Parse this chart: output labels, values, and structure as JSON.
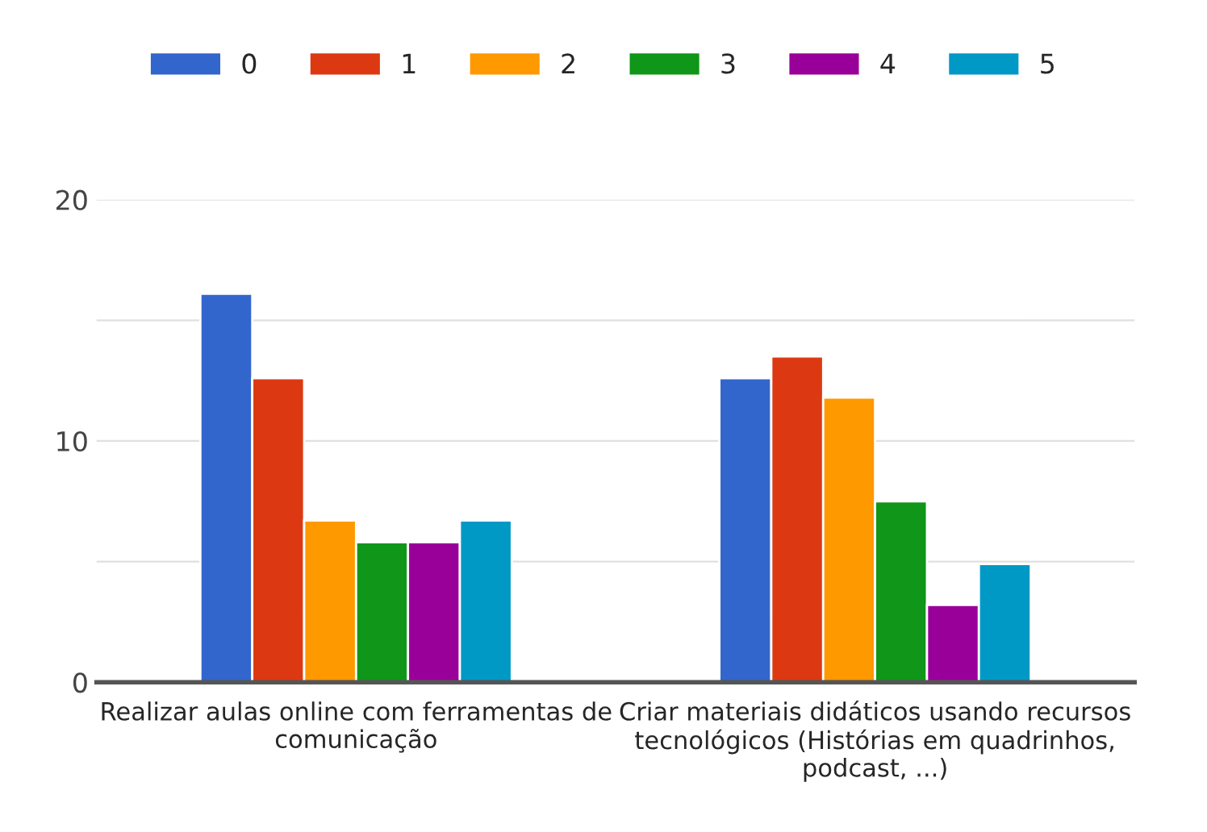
{
  "chart_data": {
    "type": "bar",
    "categories": [
      "Realizar aulas online com ferramentas de comunicação",
      "Criar materiais didáticos usando recursos tecnológicos (Histórias em quadrinhos, podcast, ...)"
    ],
    "series": [
      {
        "name": "0",
        "color": "#3366cc",
        "values": [
          16.1,
          12.6
        ]
      },
      {
        "name": "1",
        "color": "#dc3912",
        "values": [
          12.6,
          13.5
        ]
      },
      {
        "name": "2",
        "color": "#ff9900",
        "values": [
          6.7,
          11.8
        ]
      },
      {
        "name": "3",
        "color": "#109618",
        "values": [
          5.8,
          7.5
        ]
      },
      {
        "name": "4",
        "color": "#990099",
        "values": [
          5.8,
          3.2
        ]
      },
      {
        "name": "5",
        "color": "#0099c6",
        "values": [
          6.7,
          4.9
        ]
      }
    ],
    "ylim": [
      0,
      20
    ],
    "yticks": [
      0,
      {
        "value": 5,
        "label": null
      },
      10,
      {
        "value": 15,
        "label": null
      },
      20
    ],
    "grid": "y",
    "legend": "top left"
  }
}
